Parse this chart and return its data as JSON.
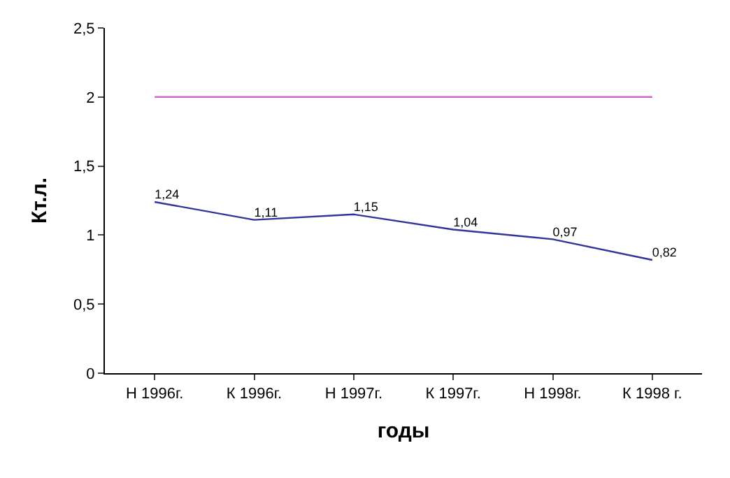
{
  "chart_data": {
    "type": "line",
    "xlabel": "годы",
    "ylabel": "Кт.л.",
    "categories": [
      "Н 1996г.",
      "К 1996г.",
      "Н 1997г.",
      "К 1997г.",
      "Н 1998г.",
      "К 1998 г."
    ],
    "series": [
      {
        "color": "#333399",
        "values": [
          1.24,
          1.11,
          1.15,
          1.04,
          0.97,
          0.82
        ],
        "value_labels": [
          "1,24",
          "1,11",
          "1,15",
          "1,04",
          "0,97",
          "0,82"
        ]
      },
      {
        "color": "#cc66cc",
        "values": [
          2,
          2,
          2,
          2,
          2,
          2
        ]
      }
    ],
    "ylim": [
      0,
      2.5
    ],
    "yticks": [
      0,
      {
        "value": 0.5,
        "label": "0,5"
      },
      1,
      {
        "value": 1.5,
        "label": "1,5"
      },
      2,
      {
        "value": 2.5,
        "label": "2,5"
      }
    ],
    "legend": false,
    "marker": "none",
    "line_style": "solid"
  }
}
